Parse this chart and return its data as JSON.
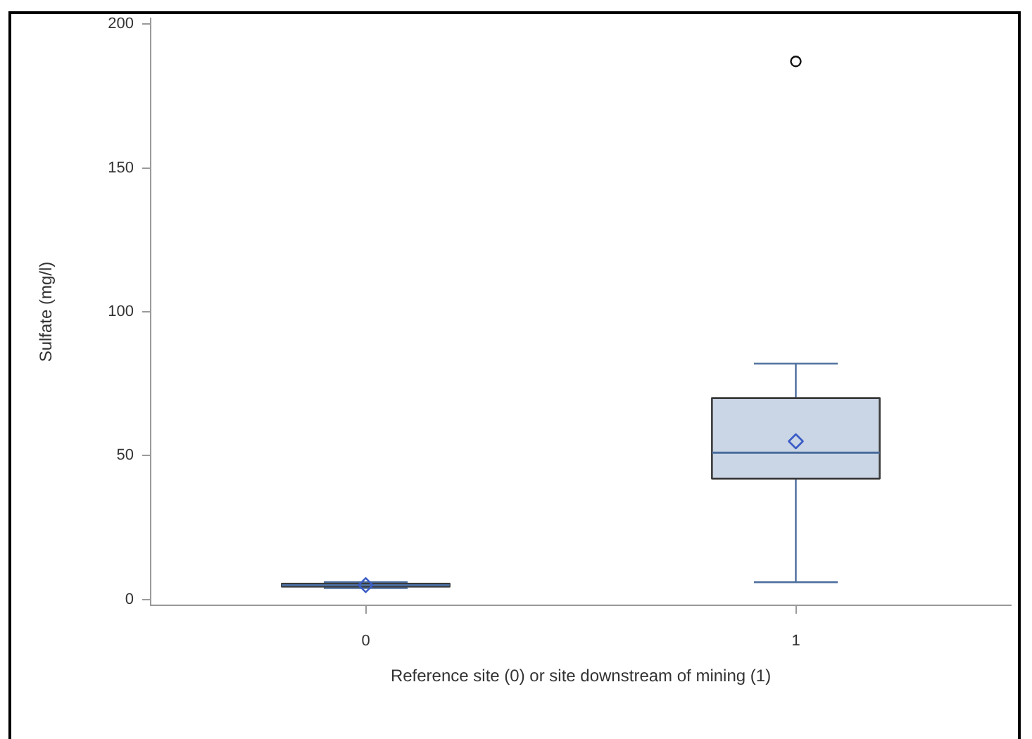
{
  "chart_data": {
    "type": "box",
    "xlabel": "Reference site (0) or site downstream of mining (1)",
    "ylabel": "Sulfate (mg/l)",
    "categories": [
      "0",
      "1"
    ],
    "color": "#cad5e5",
    "boxes": [
      {
        "low": 4,
        "q1": 4.5,
        "median": 5,
        "q3": 5.5,
        "high": 6,
        "mean": 5
      },
      {
        "low": 6,
        "q1": 42,
        "median": 51,
        "q3": 70,
        "high": 82,
        "mean": 55,
        "outliers": [
          187
        ]
      }
    ],
    "ylim": [
      -2,
      202
    ],
    "yticks": [
      0,
      50,
      100,
      150,
      200
    ]
  }
}
